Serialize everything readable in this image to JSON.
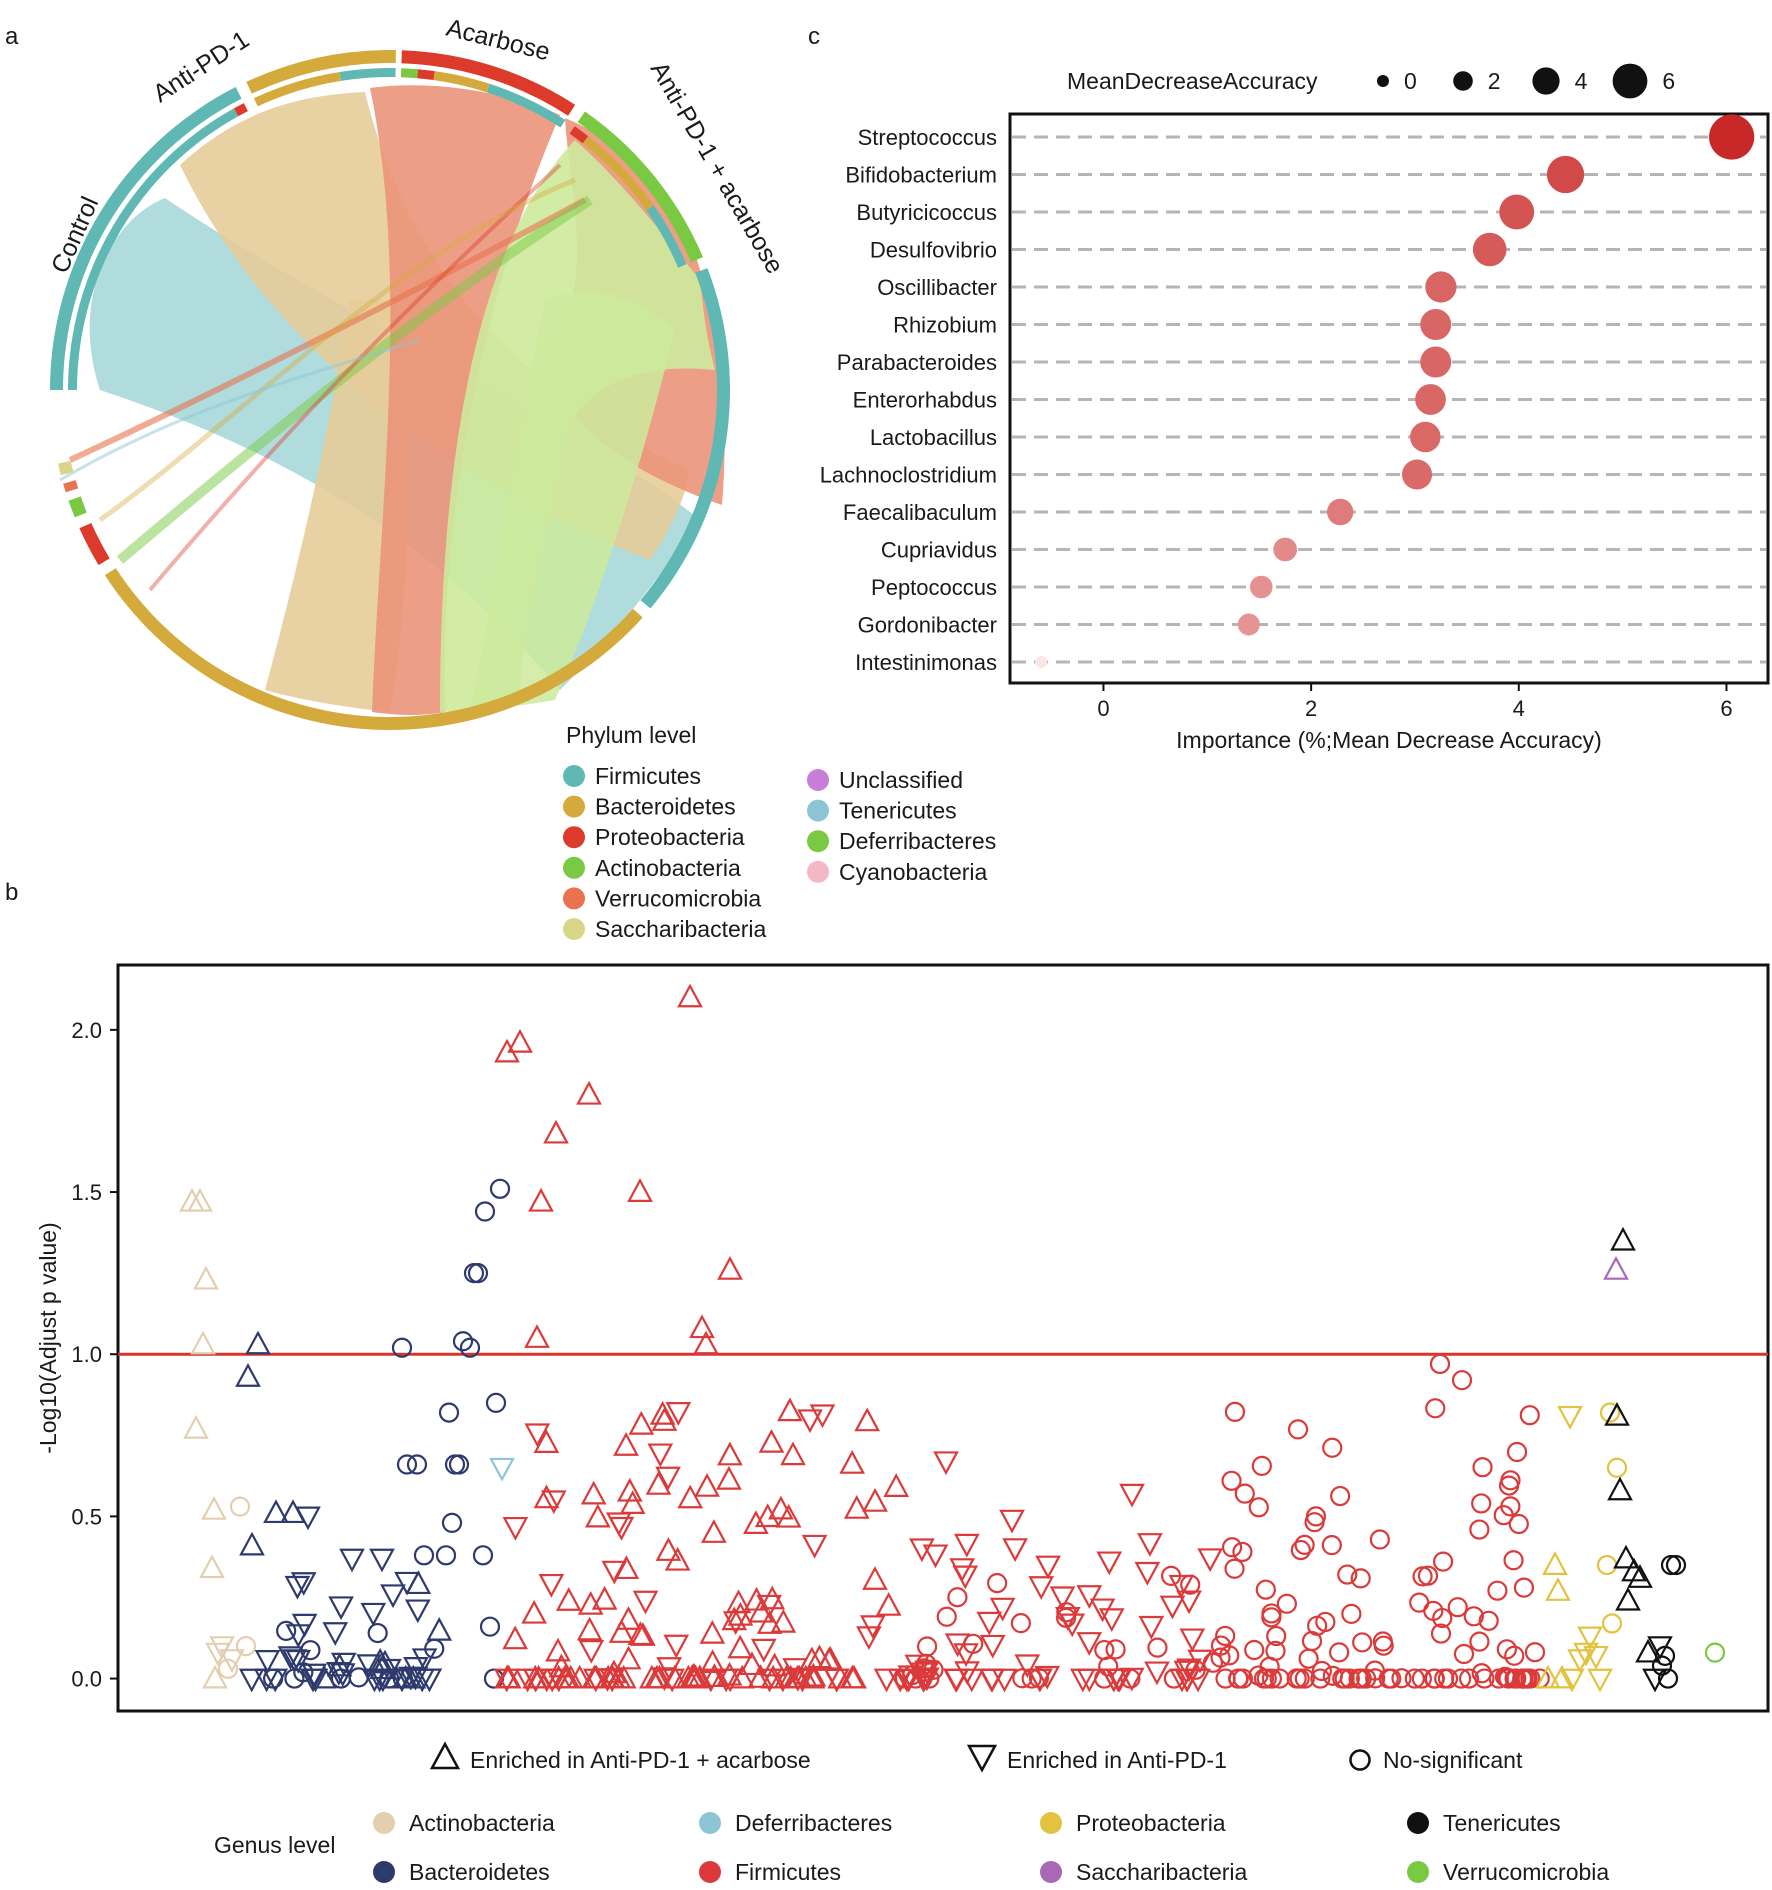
{
  "panel_labels": {
    "a": "a",
    "b": "b",
    "c": "c"
  },
  "chart_data": [
    {
      "type": "chord",
      "panel": "a",
      "groups": [
        "Control",
        "Anti-PD-1",
        "Acarbose",
        "Anti-PD-1 + acarbose"
      ],
      "phyla": [
        "Firmicutes",
        "Bacteroidetes",
        "Proteobacteria",
        "Actinobacteria",
        "Verrucomicrobia",
        "Saccharibacteria",
        "Unclassified",
        "Tenericutes",
        "Deferribacteres",
        "Cyanobacteria"
      ],
      "legend_title": "Phylum level",
      "colors": {
        "Firmicutes": "#5fb8b4",
        "Bacteroidetes": "#d4aa3c",
        "Proteobacteria": "#dc3a2a",
        "Actinobacteria": "#7ac943",
        "Verrucomicrobia": "#e8734f",
        "Saccharibacteria": "#d9d68a",
        "Unclassified": "#c77ed8",
        "Tenericutes": "#8ec5d6",
        "Deferribacteres": "#7ac943",
        "Cyanobacteria": "#f2b8c6",
        "Control": "#5fb8b4",
        "Anti-PD-1": "#d4aa3c",
        "Acarbose": "#dc3a2a",
        "Anti-PD-1 + acarbose": "#7ac943"
      },
      "links": [
        {
          "group": "Control",
          "phylum": "Firmicutes",
          "color": "#a8d8da"
        },
        {
          "group": "Anti-PD-1",
          "phylum": "Bacteroidetes",
          "color": "#e6cc99"
        },
        {
          "group": "Acarbose",
          "phylum": "Verrucomicrobia",
          "color": "#eb937a"
        },
        {
          "group": "Anti-PD-1 + acarbose",
          "phylum": "Firmicutes",
          "color": "#cdea9c"
        }
      ]
    },
    {
      "type": "dot",
      "panel": "c",
      "size_legend_title": "MeanDecreaseAccuracy",
      "size_legend_values": [
        "0",
        "2",
        "4",
        "6"
      ],
      "xlabel": "Importance (%;Mean Decrease Accuracy)",
      "xlim": [
        -0.9,
        6.4
      ],
      "xticks": [
        "0",
        "2",
        "4",
        "6"
      ],
      "genera": [
        "Streptococcus",
        "Bifidobacterium",
        "Butyricicoccus",
        "Desulfovibrio",
        "Oscillibacter",
        "Rhizobium",
        "Parabacteroides",
        "Enterorhabdus",
        "Lactobacillus",
        "Lachnoclostridium",
        "Faecalibaculum",
        "Cupriavidus",
        "Peptococcus",
        "Gordonibacter",
        "Intestinimonas"
      ],
      "values": [
        6.05,
        4.45,
        3.98,
        3.72,
        3.25,
        3.2,
        3.2,
        3.15,
        3.1,
        3.02,
        2.28,
        1.75,
        1.52,
        1.4,
        -0.6
      ]
    },
    {
      "type": "scatter",
      "panel": "b",
      "ylabel": "-Log10(Adjust p value)",
      "ylim": [
        -0.1,
        2.2
      ],
      "yticks": [
        "0.0",
        "0.5",
        "1.0",
        "1.5",
        "2.0"
      ],
      "threshold": 1.0,
      "shape_legend": [
        "Enriched in Anti-PD-1 + acarbose",
        "Enriched in Anti-PD-1",
        "No-significant"
      ],
      "genus_legend_title": "Genus level",
      "genus_legend": [
        {
          "name": "Actinobacteria",
          "color": "#e3cfae"
        },
        {
          "name": "Deferribacteres",
          "color": "#8ec5d6"
        },
        {
          "name": "Proteobacteria",
          "color": "#e2c23e"
        },
        {
          "name": "Tenericutes",
          "color": "#111111"
        },
        {
          "name": "Bacteroidetes",
          "color": "#2e3a6e"
        },
        {
          "name": "Firmicutes",
          "color": "#dc3a3a"
        },
        {
          "name": "Saccharibacteria",
          "color": "#a768b6"
        },
        {
          "name": "Verrucomicrobia",
          "color": "#7ac943"
        }
      ],
      "notable_points": [
        {
          "phylum": "Firmicutes",
          "shape": "up",
          "y": 2.1
        },
        {
          "phylum": "Firmicutes",
          "shape": "up",
          "y": 1.96
        },
        {
          "phylum": "Firmicutes",
          "shape": "up",
          "y": 1.93
        },
        {
          "phylum": "Firmicutes",
          "shape": "up",
          "y": 1.8
        },
        {
          "phylum": "Firmicutes",
          "shape": "up",
          "y": 1.68
        },
        {
          "phylum": "Firmicutes",
          "shape": "up",
          "y": 1.5
        },
        {
          "phylum": "Firmicutes",
          "shape": "up",
          "y": 1.47
        },
        {
          "phylum": "Bacteroidetes",
          "shape": "circle",
          "y": 1.5
        },
        {
          "phylum": "Bacteroidetes",
          "shape": "circle",
          "y": 1.44
        },
        {
          "phylum": "Actinobacteria",
          "shape": "up",
          "y": 1.47
        },
        {
          "phylum": "Tenericutes",
          "shape": "up",
          "y": 1.35
        },
        {
          "phylum": "Saccharibacteria",
          "shape": "up",
          "y": 1.26
        },
        {
          "phylum": "Firmicutes",
          "shape": "up",
          "y": 1.26
        },
        {
          "phylum": "Bacteroidetes",
          "shape": "circle",
          "y": 1.25
        }
      ]
    }
  ]
}
